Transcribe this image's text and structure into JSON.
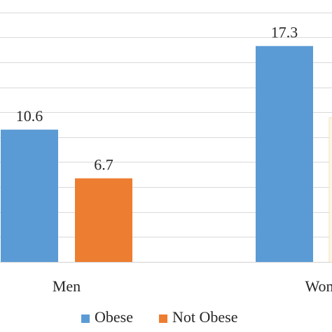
{
  "chart_data": {
    "type": "bar",
    "categories": [
      "Men",
      "Wom"
    ],
    "series": [
      {
        "name": "Obese",
        "values": [
          10.6,
          17.3
        ],
        "color": "#5b9bd5",
        "labels": [
          "10.6",
          "17.3"
        ]
      },
      {
        "name": "Not Obese",
        "values": [
          6.7,
          null
        ],
        "color": "#ed7d31",
        "labels": [
          "6.7",
          ""
        ]
      }
    ],
    "ylim": [
      0,
      20
    ],
    "grid": true,
    "legend_placement": "bottom"
  }
}
